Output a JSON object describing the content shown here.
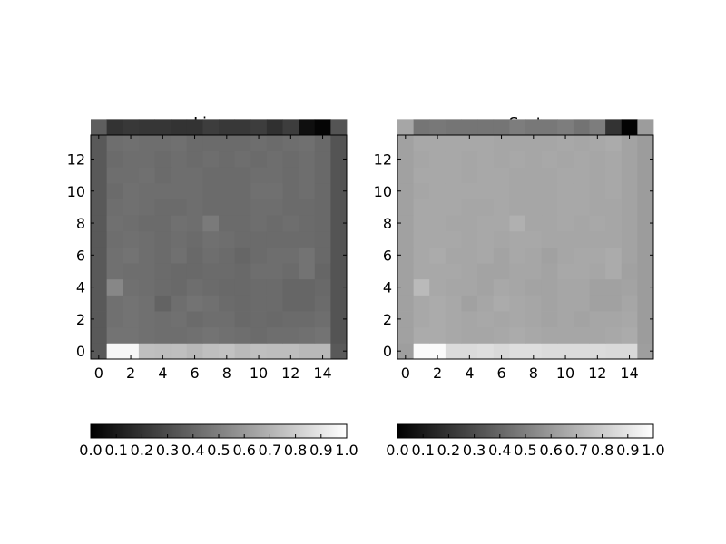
{
  "chart_data": [
    {
      "type": "heatmap",
      "title": "Linear",
      "colormap": "gray",
      "x_range": [
        -0.5,
        15.5
      ],
      "y_range": [
        -0.5,
        13.5
      ],
      "x_ticks": [
        0,
        2,
        4,
        6,
        8,
        10,
        12,
        14
      ],
      "y_ticks": [
        0,
        2,
        4,
        6,
        8,
        10,
        12
      ],
      "values": [
        [
          0.35,
          0.97,
          0.97,
          0.75,
          0.74,
          0.75,
          0.72,
          0.75,
          0.76,
          0.73,
          0.75,
          0.74,
          0.74,
          0.72,
          0.72,
          0.35
        ],
        [
          0.35,
          0.45,
          0.45,
          0.44,
          0.43,
          0.43,
          0.44,
          0.45,
          0.44,
          0.43,
          0.42,
          0.43,
          0.43,
          0.44,
          0.45,
          0.33
        ],
        [
          0.35,
          0.44,
          0.45,
          0.44,
          0.43,
          0.44,
          0.42,
          0.43,
          0.43,
          0.41,
          0.42,
          0.41,
          0.42,
          0.42,
          0.43,
          0.33
        ],
        [
          0.35,
          0.44,
          0.45,
          0.44,
          0.39,
          0.43,
          0.45,
          0.44,
          0.42,
          0.41,
          0.42,
          0.42,
          0.4,
          0.4,
          0.42,
          0.33
        ],
        [
          0.35,
          0.53,
          0.44,
          0.43,
          0.42,
          0.41,
          0.43,
          0.42,
          0.41,
          0.41,
          0.42,
          0.42,
          0.4,
          0.4,
          0.41,
          0.33
        ],
        [
          0.35,
          0.44,
          0.43,
          0.43,
          0.42,
          0.41,
          0.41,
          0.42,
          0.42,
          0.41,
          0.43,
          0.43,
          0.42,
          0.45,
          0.4,
          0.33
        ],
        [
          0.35,
          0.44,
          0.45,
          0.43,
          0.42,
          0.44,
          0.41,
          0.43,
          0.42,
          0.4,
          0.42,
          0.43,
          0.43,
          0.45,
          0.41,
          0.33
        ],
        [
          0.35,
          0.43,
          0.44,
          0.43,
          0.42,
          0.43,
          0.42,
          0.44,
          0.43,
          0.42,
          0.42,
          0.42,
          0.42,
          0.42,
          0.41,
          0.33
        ],
        [
          0.35,
          0.44,
          0.43,
          0.42,
          0.42,
          0.44,
          0.43,
          0.48,
          0.42,
          0.42,
          0.43,
          0.42,
          0.43,
          0.42,
          0.41,
          0.33
        ],
        [
          0.35,
          0.43,
          0.44,
          0.43,
          0.42,
          0.42,
          0.43,
          0.42,
          0.42,
          0.42,
          0.43,
          0.43,
          0.42,
          0.42,
          0.41,
          0.33
        ],
        [
          0.35,
          0.42,
          0.44,
          0.43,
          0.43,
          0.43,
          0.43,
          0.42,
          0.42,
          0.42,
          0.44,
          0.44,
          0.42,
          0.43,
          0.41,
          0.33
        ],
        [
          0.35,
          0.43,
          0.43,
          0.44,
          0.42,
          0.43,
          0.43,
          0.42,
          0.42,
          0.42,
          0.43,
          0.43,
          0.42,
          0.43,
          0.41,
          0.33
        ],
        [
          0.35,
          0.42,
          0.43,
          0.43,
          0.42,
          0.43,
          0.42,
          0.43,
          0.42,
          0.43,
          0.42,
          0.43,
          0.42,
          0.43,
          0.41,
          0.33
        ],
        [
          0.35,
          0.43,
          0.44,
          0.43,
          0.43,
          0.44,
          0.42,
          0.42,
          0.42,
          0.42,
          0.43,
          0.42,
          0.43,
          0.44,
          0.41,
          0.33
        ],
        [
          0.37,
          0.2,
          0.22,
          0.21,
          0.21,
          0.2,
          0.2,
          0.24,
          0.22,
          0.22,
          0.24,
          0.19,
          0.24,
          0.06,
          0.02,
          0.33
        ]
      ],
      "colorbar": {
        "ticks": [
          0.0,
          0.1,
          0.2,
          0.3,
          0.4,
          0.5,
          0.6,
          0.7,
          0.8,
          0.9,
          1.0
        ],
        "orientation": "horizontal"
      }
    },
    {
      "type": "heatmap",
      "title": "Sqrt",
      "colormap": "gray",
      "x_range": [
        -0.5,
        15.5
      ],
      "y_range": [
        -0.5,
        13.5
      ],
      "x_ticks": [
        0,
        2,
        4,
        6,
        8,
        10,
        12,
        14
      ],
      "y_ticks": [
        0,
        2,
        4,
        6,
        8,
        10,
        12
      ],
      "values": [
        [
          0.62,
          0.98,
          0.98,
          0.86,
          0.86,
          0.87,
          0.85,
          0.87,
          0.87,
          0.86,
          0.86,
          0.86,
          0.86,
          0.85,
          0.85,
          0.62
        ],
        [
          0.63,
          0.67,
          0.67,
          0.66,
          0.65,
          0.65,
          0.66,
          0.67,
          0.66,
          0.65,
          0.65,
          0.65,
          0.65,
          0.66,
          0.67,
          0.61
        ],
        [
          0.63,
          0.66,
          0.67,
          0.66,
          0.65,
          0.66,
          0.65,
          0.66,
          0.65,
          0.64,
          0.65,
          0.64,
          0.65,
          0.65,
          0.66,
          0.61
        ],
        [
          0.63,
          0.66,
          0.67,
          0.66,
          0.63,
          0.65,
          0.67,
          0.66,
          0.65,
          0.64,
          0.65,
          0.65,
          0.63,
          0.63,
          0.65,
          0.61
        ],
        [
          0.63,
          0.73,
          0.66,
          0.65,
          0.65,
          0.64,
          0.66,
          0.65,
          0.64,
          0.64,
          0.65,
          0.65,
          0.63,
          0.63,
          0.64,
          0.61
        ],
        [
          0.63,
          0.66,
          0.66,
          0.66,
          0.65,
          0.64,
          0.64,
          0.65,
          0.65,
          0.64,
          0.66,
          0.66,
          0.65,
          0.67,
          0.63,
          0.61
        ],
        [
          0.63,
          0.66,
          0.67,
          0.65,
          0.65,
          0.66,
          0.64,
          0.66,
          0.65,
          0.63,
          0.65,
          0.66,
          0.66,
          0.67,
          0.64,
          0.61
        ],
        [
          0.63,
          0.66,
          0.66,
          0.66,
          0.65,
          0.66,
          0.65,
          0.66,
          0.66,
          0.65,
          0.65,
          0.65,
          0.65,
          0.65,
          0.64,
          0.61
        ],
        [
          0.63,
          0.66,
          0.66,
          0.65,
          0.65,
          0.66,
          0.66,
          0.69,
          0.65,
          0.65,
          0.66,
          0.65,
          0.66,
          0.65,
          0.64,
          0.61
        ],
        [
          0.63,
          0.66,
          0.66,
          0.66,
          0.65,
          0.65,
          0.66,
          0.65,
          0.65,
          0.65,
          0.66,
          0.66,
          0.65,
          0.65,
          0.64,
          0.61
        ],
        [
          0.63,
          0.65,
          0.66,
          0.66,
          0.66,
          0.66,
          0.66,
          0.65,
          0.65,
          0.65,
          0.66,
          0.66,
          0.65,
          0.66,
          0.64,
          0.61
        ],
        [
          0.63,
          0.66,
          0.66,
          0.66,
          0.65,
          0.66,
          0.66,
          0.65,
          0.65,
          0.65,
          0.66,
          0.66,
          0.65,
          0.66,
          0.64,
          0.61
        ],
        [
          0.63,
          0.65,
          0.66,
          0.66,
          0.65,
          0.66,
          0.65,
          0.66,
          0.65,
          0.66,
          0.65,
          0.66,
          0.65,
          0.66,
          0.64,
          0.61
        ],
        [
          0.63,
          0.66,
          0.66,
          0.66,
          0.66,
          0.66,
          0.65,
          0.65,
          0.65,
          0.65,
          0.66,
          0.65,
          0.66,
          0.67,
          0.64,
          0.61
        ],
        [
          0.65,
          0.46,
          0.47,
          0.46,
          0.46,
          0.46,
          0.46,
          0.49,
          0.47,
          0.47,
          0.49,
          0.45,
          0.49,
          0.2,
          0.01,
          0.61
        ]
      ],
      "colorbar": {
        "ticks": [
          0.0,
          0.1,
          0.2,
          0.3,
          0.4,
          0.5,
          0.6,
          0.7,
          0.8,
          0.9,
          1.0
        ],
        "orientation": "horizontal"
      }
    }
  ]
}
